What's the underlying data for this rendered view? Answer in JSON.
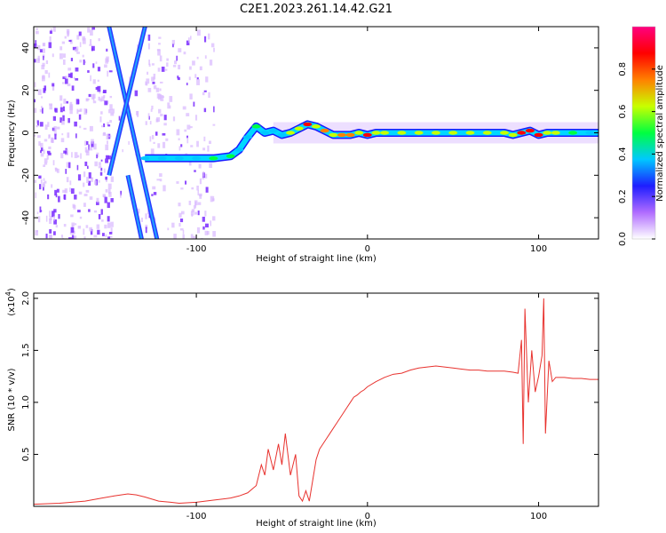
{
  "figure": {
    "title": "C2E1.2023.261.14.42.G21"
  },
  "chart_data": [
    {
      "type": "heatmap",
      "xlabel": "Height of straight line (km)",
      "ylabel": "Frequency (Hz)",
      "xlim": [
        -195,
        135
      ],
      "ylim": [
        -50,
        50
      ],
      "x_ticks": [
        -100,
        0,
        100
      ],
      "x_tick_labels": [
        "-100",
        "0",
        "100"
      ],
      "y_ticks": [
        -40,
        -20,
        0,
        20,
        40
      ],
      "y_tick_labels": [
        "-40",
        "-20",
        "0",
        "20",
        "40"
      ],
      "grid": false,
      "colorbar": {
        "label": "Normalized spectral amplitude",
        "range": [
          0,
          1
        ],
        "ticks": [
          0.0,
          0.2,
          0.4,
          0.6,
          0.8
        ],
        "tick_labels": [
          "0.0",
          "0.2",
          "0.4",
          "0.6",
          "0.8"
        ],
        "colors": [
          "#ffffff",
          "#b06cff",
          "#1e1eff",
          "#00c8ff",
          "#00ff40",
          "#c8ff00",
          "#ff8000",
          "#ff0000",
          "#ff0080"
        ]
      },
      "noise_region_km": [
        -195,
        -90
      ],
      "diagonal_tracks": [
        {
          "x": [
            -151,
            -123
          ],
          "y": [
            50,
            -50
          ]
        },
        {
          "x": [
            -130,
            -151
          ],
          "y": [
            50,
            -20
          ]
        },
        {
          "x": [
            -140,
            -132
          ],
          "y": [
            -20,
            -50
          ]
        }
      ],
      "trace": {
        "x": [
          -130,
          -120,
          -110,
          -100,
          -90,
          -80,
          -75,
          -70,
          -65,
          -60,
          -55,
          -50,
          -45,
          -40,
          -35,
          -30,
          -25,
          -20,
          -15,
          -10,
          -5,
          0,
          5,
          10,
          20,
          30,
          40,
          50,
          60,
          70,
          80,
          85,
          90,
          95,
          100,
          105,
          110,
          120,
          130,
          135
        ],
        "y": [
          -12,
          -12,
          -12,
          -12,
          -12,
          -11,
          -8,
          -2,
          3,
          0,
          1,
          -1,
          0,
          2,
          4,
          3,
          1,
          -1,
          -1,
          -1,
          0,
          -1,
          0,
          0,
          0,
          0,
          0,
          0,
          0,
          0,
          0,
          -1,
          0,
          1,
          -1,
          0,
          0,
          0,
          0,
          0
        ],
        "amplitude": [
          0.25,
          0.3,
          0.3,
          0.35,
          0.4,
          0.45,
          0.3,
          0.35,
          0.4,
          0.3,
          0.35,
          0.3,
          0.55,
          0.6,
          0.85,
          0.6,
          0.7,
          0.6,
          0.65,
          0.7,
          0.6,
          0.85,
          0.6,
          0.55,
          0.6,
          0.6,
          0.55,
          0.6,
          0.6,
          0.6,
          0.55,
          0.6,
          0.85,
          0.75,
          0.85,
          0.6,
          0.5,
          0.4,
          0.35,
          0.3
        ]
      }
    },
    {
      "type": "line",
      "xlabel": "Height of straight line (km)",
      "ylabel": "SNR (10 * v/v)",
      "y_multiplier": "(x10",
      "y_multiplier_exp": "4",
      "y_multiplier_close": ")",
      "xlim": [
        -195,
        135
      ],
      "ylim": [
        0,
        2.05
      ],
      "x_ticks": [
        -100,
        0,
        100
      ],
      "x_tick_labels": [
        "-100",
        "0",
        "100"
      ],
      "y_ticks": [
        0.5,
        1.0,
        1.5,
        2.0
      ],
      "y_tick_labels": [
        "0.5",
        "1.0",
        "1.5",
        "2.0"
      ],
      "grid": false,
      "series": [
        {
          "color": "#e8322e",
          "x": [
            -195,
            -180,
            -165,
            -155,
            -148,
            -140,
            -135,
            -130,
            -122,
            -115,
            -110,
            -100,
            -90,
            -80,
            -75,
            -70,
            -65,
            -62,
            -60,
            -58,
            -55,
            -52,
            -50,
            -48,
            -45,
            -42,
            -40,
            -38,
            -36,
            -34,
            -32,
            -30,
            -28,
            -26,
            -24,
            -22,
            -20,
            -18,
            -16,
            -14,
            -12,
            -10,
            -8,
            -6,
            -4,
            -2,
            0,
            5,
            10,
            15,
            20,
            25,
            30,
            35,
            40,
            45,
            50,
            55,
            60,
            65,
            70,
            75,
            80,
            85,
            88,
            90,
            91,
            92,
            94,
            96,
            98,
            100,
            102,
            103,
            104,
            106,
            108,
            110,
            115,
            120,
            125,
            130,
            135
          ],
          "y": [
            0.02,
            0.03,
            0.05,
            0.08,
            0.1,
            0.12,
            0.11,
            0.09,
            0.05,
            0.04,
            0.03,
            0.04,
            0.06,
            0.08,
            0.1,
            0.13,
            0.2,
            0.4,
            0.3,
            0.55,
            0.35,
            0.6,
            0.4,
            0.7,
            0.3,
            0.5,
            0.1,
            0.05,
            0.15,
            0.05,
            0.25,
            0.45,
            0.55,
            0.6,
            0.65,
            0.7,
            0.75,
            0.8,
            0.85,
            0.9,
            0.95,
            1.0,
            1.05,
            1.07,
            1.1,
            1.12,
            1.15,
            1.2,
            1.24,
            1.27,
            1.28,
            1.31,
            1.33,
            1.34,
            1.35,
            1.34,
            1.33,
            1.32,
            1.31,
            1.31,
            1.3,
            1.3,
            1.3,
            1.29,
            1.28,
            1.6,
            0.6,
            1.9,
            1.0,
            1.5,
            1.1,
            1.25,
            1.45,
            2.0,
            0.7,
            1.4,
            1.2,
            1.24,
            1.24,
            1.23,
            1.23,
            1.22,
            1.22
          ]
        }
      ]
    }
  ]
}
